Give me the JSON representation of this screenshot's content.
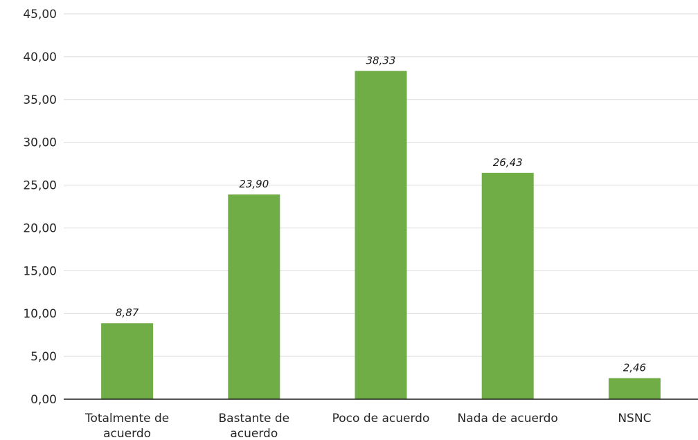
{
  "chart_data": {
    "type": "bar",
    "categories": [
      [
        "Totalmente de",
        "acuerdo"
      ],
      [
        "Bastante de",
        "acuerdo"
      ],
      [
        "Poco de acuerdo"
      ],
      [
        "Nada de acuerdo"
      ],
      [
        "NSNC"
      ]
    ],
    "values": [
      8.87,
      23.9,
      38.33,
      26.43,
      2.46
    ],
    "value_labels": [
      "8,87",
      "23,90",
      "38,33",
      "26,43",
      "2,46"
    ],
    "yticks": [
      "0,00",
      "5,00",
      "10,00",
      "15,00",
      "20,00",
      "25,00",
      "30,00",
      "35,00",
      "40,00",
      "45,00"
    ],
    "ylim": [
      0,
      45
    ],
    "ystep": 5,
    "grid": true,
    "legend": "none",
    "bar_color": "#70ad47"
  }
}
